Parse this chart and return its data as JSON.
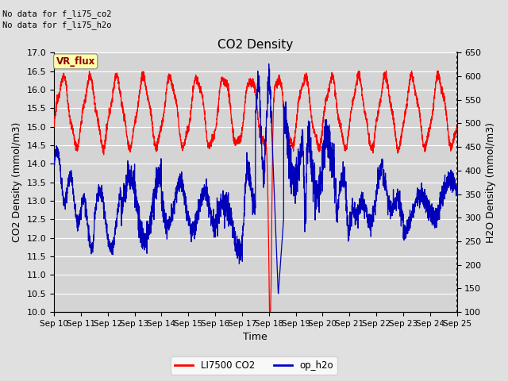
{
  "title": "CO2 Density",
  "xlabel": "Time",
  "ylabel_left": "CO2 Density (mmol/m3)",
  "ylabel_right": "H2O Density (mmol/m3)",
  "top_text_1": "No data for f_li75_co2",
  "top_text_2": "No data for f_li75_h2o",
  "vr_flux_label": "VR_flux",
  "ylim_left": [
    10.0,
    17.0
  ],
  "ylim_right": [
    100,
    650
  ],
  "xlim": [
    0,
    15
  ],
  "xtick_labels": [
    "Sep 10",
    "Sep 11",
    "Sep 12",
    "Sep 13",
    "Sep 14",
    "Sep 15",
    "Sep 16",
    "Sep 17",
    "Sep 18",
    "Sep 19",
    "Sep 20",
    "Sep 21",
    "Sep 22",
    "Sep 23",
    "Sep 24",
    "Sep 25"
  ],
  "legend_entries": [
    "LI7500 CO2",
    "op_h2o"
  ],
  "legend_colors": [
    "#ff0000",
    "#0000cc"
  ],
  "fig_bg": "#e0e0e0",
  "plot_bg": "#d4d4d4",
  "co2_color": "#ff0000",
  "h2o_color": "#0000bb",
  "grid_color": "#ffffff",
  "title_fontsize": 11,
  "label_fontsize": 8,
  "tick_fontsize": 7.5
}
